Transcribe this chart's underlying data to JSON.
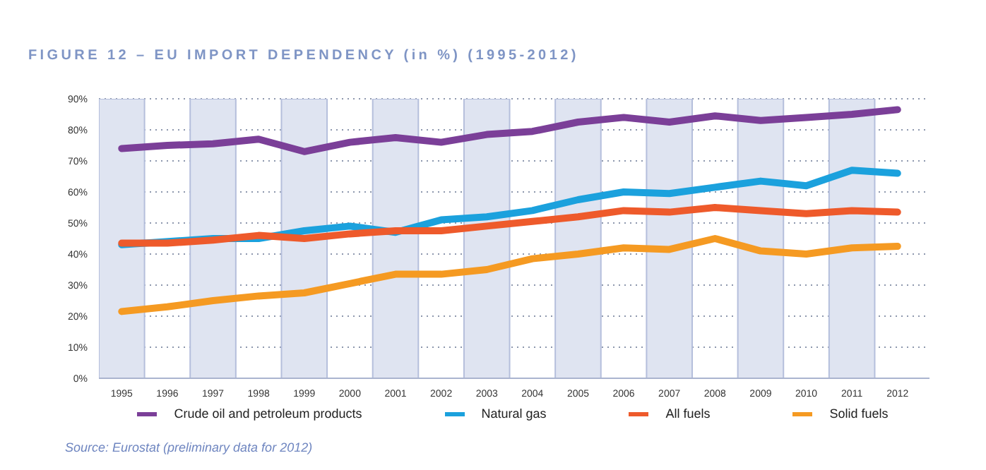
{
  "chart_data": {
    "type": "line",
    "title": "FIGURE 12 – EU IMPORT DEPENDENCY (in %) (1995-2012)",
    "x": [
      1995,
      1996,
      1997,
      1998,
      1999,
      2000,
      2001,
      2002,
      2003,
      2004,
      2005,
      2006,
      2007,
      2008,
      2009,
      2010,
      2011,
      2012
    ],
    "xlim": [
      1994.5,
      2012.7
    ],
    "xticks": [
      1995,
      1996,
      1997,
      1998,
      1999,
      2000,
      2001,
      2002,
      2003,
      2004,
      2005,
      2006,
      2007,
      2008,
      2009,
      2010,
      2011,
      2012
    ],
    "ylim": [
      0,
      90
    ],
    "yticks": [
      {
        "value": 0,
        "label": "0%"
      },
      {
        "value": 10,
        "label": "10%"
      },
      {
        "value": 20,
        "label": "20%"
      },
      {
        "value": 30,
        "label": "30%"
      },
      {
        "value": 40,
        "label": "40%"
      },
      {
        "value": 50,
        "label": "50%"
      },
      {
        "value": 60,
        "label": "60%"
      },
      {
        "value": 70,
        "label": "70%"
      },
      {
        "value": 80,
        "label": "80%"
      },
      {
        "value": 90,
        "label": "90%"
      }
    ],
    "series": [
      {
        "name": "Crude oil and petroleum products",
        "color": "#7b3f98",
        "values": [
          74,
          75,
          75.5,
          77,
          73,
          76,
          77.5,
          76,
          78.5,
          79.5,
          82.5,
          84,
          82.5,
          84.5,
          83,
          84,
          85,
          86.5
        ]
      },
      {
        "name": "Natural gas",
        "color": "#1ba1dd",
        "values": [
          43,
          null,
          45,
          45,
          47.5,
          49,
          47,
          51,
          52,
          54,
          57.5,
          60,
          59.5,
          61.5,
          63.5,
          62,
          67,
          66
        ]
      },
      {
        "name": "All fuels",
        "color": "#ee5a2b",
        "values": [
          43.5,
          43.5,
          44.5,
          46,
          45,
          46.5,
          47.5,
          47.5,
          49,
          50.5,
          52,
          54,
          53.5,
          55,
          54,
          53,
          54,
          53.5
        ]
      },
      {
        "name": "Solid fuels",
        "color": "#f59a22",
        "values": [
          21.5,
          23,
          25,
          26.5,
          27.5,
          30.5,
          33.5,
          33.5,
          35,
          38.5,
          40,
          42,
          41.5,
          45,
          41,
          40,
          42,
          42.5
        ]
      }
    ],
    "bands": [
      {
        "axis": "x",
        "from": 1994.5,
        "to": 1995.5,
        "color": "#dfe4f1"
      },
      {
        "axis": "x",
        "from": 1996.5,
        "to": 1997.5,
        "color": "#dfe4f1"
      },
      {
        "axis": "x",
        "from": 1998.5,
        "to": 1999.5,
        "color": "#dfe4f1"
      },
      {
        "axis": "x",
        "from": 2000.5,
        "to": 2001.5,
        "color": "#dfe4f1"
      },
      {
        "axis": "x",
        "from": 2002.5,
        "to": 2003.5,
        "color": "#dfe4f1"
      },
      {
        "axis": "x",
        "from": 2004.5,
        "to": 2005.5,
        "color": "#dfe4f1"
      },
      {
        "axis": "x",
        "from": 2006.5,
        "to": 2007.5,
        "color": "#dfe4f1"
      },
      {
        "axis": "x",
        "from": 2008.5,
        "to": 2009.5,
        "color": "#dfe4f1"
      },
      {
        "axis": "x",
        "from": 2010.5,
        "to": 2011.5,
        "color": "#dfe4f1"
      }
    ],
    "grid": "y",
    "legend": "bottom",
    "marker": "none",
    "line_style": "solid",
    "annotations": [
      "Source: Eurostat (preliminary data for 2012)"
    ]
  }
}
